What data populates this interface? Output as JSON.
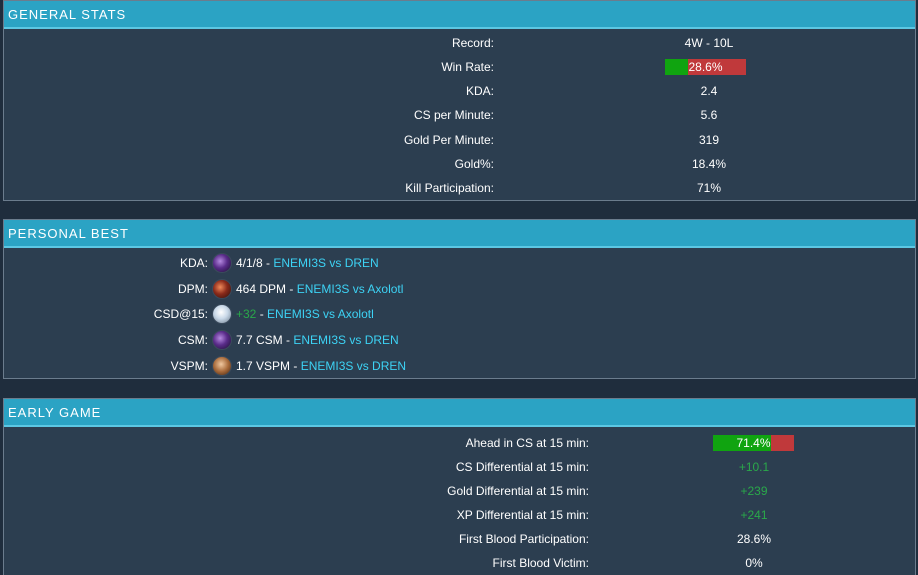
{
  "general_stats": {
    "title": "GENERAL STATS",
    "rows": [
      {
        "label": "Record:",
        "value": "4W - 10L"
      },
      {
        "label": "Win Rate:",
        "value": "28.6%",
        "bar_fraction": 0.286
      },
      {
        "label": "KDA:",
        "value": "2.4"
      },
      {
        "label": "CS per Minute:",
        "value": "5.6"
      },
      {
        "label": "Gold Per Minute:",
        "value": "319"
      },
      {
        "label": "Gold%:",
        "value": "18.4%"
      },
      {
        "label": "Kill Participation:",
        "value": "71%"
      }
    ]
  },
  "personal_best": {
    "title": "PERSONAL BEST",
    "rows": [
      {
        "label": "KDA:",
        "icon": "purple-champion-icon",
        "stat": "4/1/8",
        "sep": " - ",
        "match": "ENEMI3S vs DREN"
      },
      {
        "label": "DPM:",
        "icon": "red-champion-icon",
        "stat": "464 DPM",
        "sep": " - ",
        "match": "ENEMI3S vs Axolotl"
      },
      {
        "label": "CSD@15:",
        "icon": "white-champion-icon",
        "stat": "+32",
        "sep": " - ",
        "match": "ENEMI3S vs Axolotl"
      },
      {
        "label": "CSM:",
        "icon": "purple-champion-icon",
        "stat": "7.7 CSM",
        "sep": " - ",
        "match": "ENEMI3S vs DREN"
      },
      {
        "label": "VSPM:",
        "icon": "tan-champion-icon",
        "stat": "1.7 VSPM",
        "sep": " - ",
        "match": "ENEMI3S vs DREN"
      }
    ]
  },
  "early_game": {
    "title": "EARLY GAME",
    "rows": [
      {
        "label": "Ahead in CS at 15 min:",
        "value": "71.4%",
        "bar_fraction": 0.714
      },
      {
        "label": "CS Differential at 15 min:",
        "value": "+10.1"
      },
      {
        "label": "Gold Differential at 15 min:",
        "value": "+239"
      },
      {
        "label": "XP Differential at 15 min:",
        "value": "+241"
      },
      {
        "label": "First Blood Participation:",
        "value": "28.6%"
      },
      {
        "label": "First Blood Victim:",
        "value": "0%"
      }
    ]
  },
  "colors": {
    "header_bg": "#2ba3c4",
    "panel_bg": "#2c3e50",
    "bar_positive": "#10a410",
    "bar_negative": "#c0393b",
    "positive_text": "#2aa84a",
    "link": "#3dd3f5"
  }
}
